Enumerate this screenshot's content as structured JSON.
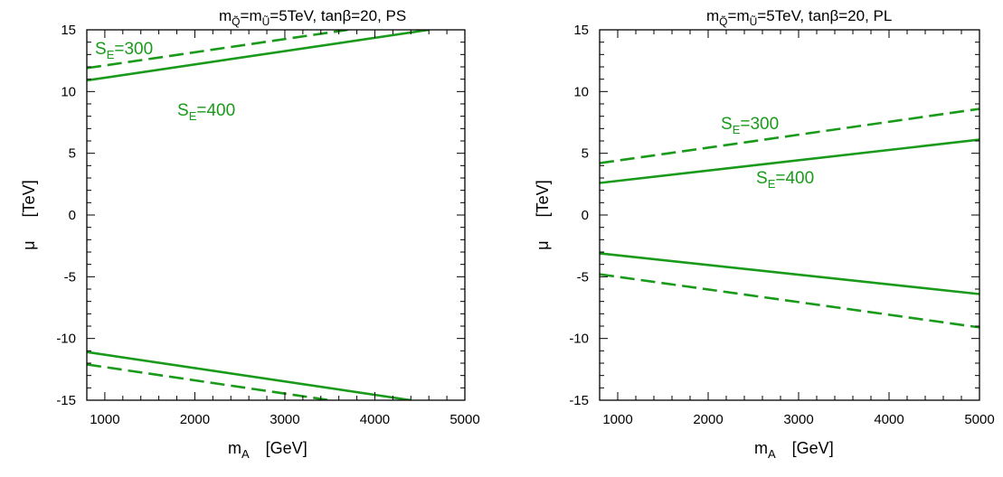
{
  "figure": {
    "panels": [
      {
        "title_parts": {
          "m1": "m",
          "s1": "Q̃",
          "eq1": "=m",
          "s2": "Ũ",
          "rest": "=5TeV, tanβ=20, PS"
        },
        "xlabel": {
          "main": "m",
          "sub": "A",
          "unit": "[GeV]"
        },
        "ylabel": {
          "main": "μ",
          "unit": "[TeV]"
        },
        "labels": [
          {
            "main": "S",
            "sub": "E",
            "rest": "=300"
          },
          {
            "main": "S",
            "sub": "E",
            "rest": "=400"
          }
        ]
      },
      {
        "title_parts": {
          "m1": "m",
          "s1": "Q̃",
          "eq1": "=m",
          "s2": "Ũ",
          "rest": "=5TeV, tanβ=20, PL"
        },
        "xlabel": {
          "main": "m",
          "sub": "A",
          "unit": "[GeV]"
        },
        "ylabel": {
          "main": "μ",
          "unit": "[TeV]"
        },
        "labels": [
          {
            "main": "S",
            "sub": "E",
            "rest": "=300"
          },
          {
            "main": "S",
            "sub": "E",
            "rest": "=400"
          }
        ]
      }
    ]
  },
  "chart_data": [
    {
      "type": "line",
      "title": "m_Q̃=m_Ũ=5TeV, tanβ=20, PS",
      "xlabel": "m_A [GeV]",
      "ylabel": "μ [TeV]",
      "xlim": [
        800,
        5000
      ],
      "ylim": [
        -15,
        15
      ],
      "xticks": [
        1000,
        2000,
        3000,
        4000,
        5000
      ],
      "yticks": [
        -15,
        -10,
        -5,
        0,
        5,
        10,
        15
      ],
      "color": "#1a9a1a",
      "series": [
        {
          "name": "S_E=300",
          "style": "dashed",
          "x": [
            800,
            3700
          ],
          "y": [
            11.9,
            15.0
          ]
        },
        {
          "name": "S_E=300",
          "style": "dashed",
          "x": [
            800,
            3500
          ],
          "y": [
            -12.1,
            -15.0
          ]
        },
        {
          "name": "S_E=400",
          "style": "solid",
          "x": [
            800,
            4600
          ],
          "y": [
            10.9,
            15.0
          ]
        },
        {
          "name": "S_E=400",
          "style": "solid",
          "x": [
            800,
            4400
          ],
          "y": [
            -11.1,
            -15.0
          ]
        }
      ]
    },
    {
      "type": "line",
      "title": "m_Q̃=m_Ũ=5TeV, tanβ=20, PL",
      "xlabel": "m_A [GeV]",
      "ylabel": "μ [TeV]",
      "xlim": [
        800,
        5000
      ],
      "ylim": [
        -15,
        15
      ],
      "xticks": [
        1000,
        2000,
        3000,
        4000,
        5000
      ],
      "yticks": [
        -15,
        -10,
        -5,
        0,
        5,
        10,
        15
      ],
      "color": "#1a9a1a",
      "series": [
        {
          "name": "S_E=300",
          "style": "dashed",
          "x": [
            800,
            5000
          ],
          "y": [
            4.2,
            8.6
          ]
        },
        {
          "name": "S_E=300",
          "style": "dashed",
          "x": [
            800,
            5000
          ],
          "y": [
            -4.8,
            -9.1
          ]
        },
        {
          "name": "S_E=400",
          "style": "solid",
          "x": [
            800,
            5000
          ],
          "y": [
            2.6,
            6.1
          ]
        },
        {
          "name": "S_E=400",
          "style": "solid",
          "x": [
            800,
            5000
          ],
          "y": [
            -3.1,
            -6.4
          ]
        }
      ]
    }
  ]
}
